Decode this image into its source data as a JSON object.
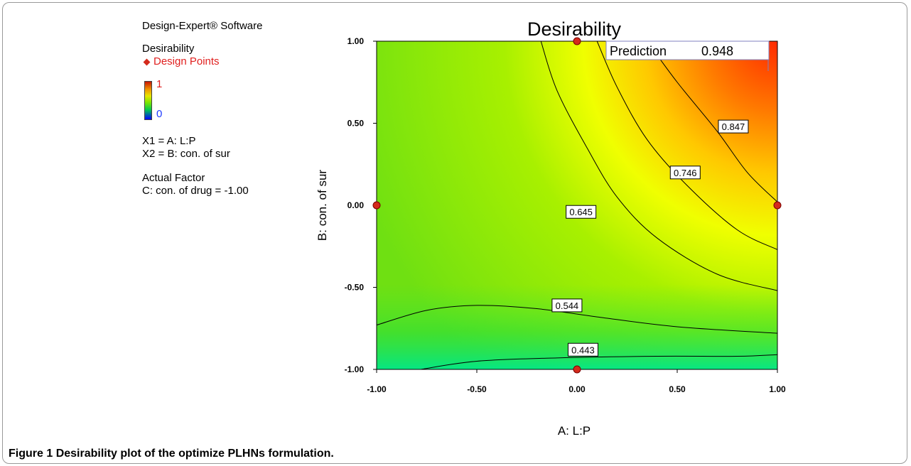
{
  "caption": {
    "label": "Figure 1",
    "text": "Desirability plot of the optimize PLHNs formulation."
  },
  "legend": {
    "software": "Design-Expert® Software",
    "response": "Desirability",
    "design_points": "Design Points",
    "scale_high": "1",
    "scale_low": "0",
    "x1": "X1 = A: L:P",
    "x2": "X2 = B: con. of sur",
    "actual_factor_title": "Actual Factor",
    "actual_factor": "C: con. of drug = -1.00"
  },
  "colors": {
    "design_point": "#d42a1c",
    "contour_line": "#000000"
  },
  "chart_data": {
    "type": "heatmap",
    "title": "Desirability",
    "xlabel": "A: L:P",
    "ylabel": "B: con. of sur",
    "xlim": [
      -1,
      1
    ],
    "ylim": [
      -1,
      1
    ],
    "xticks": [
      "-1.00",
      "-0.50",
      "0.00",
      "0.50",
      "1.00"
    ],
    "yticks": [
      "-1.00",
      "-0.50",
      "0.00",
      "0.50",
      "1.00"
    ],
    "grid": false,
    "prediction": {
      "label": "Prediction",
      "value": "0.948"
    },
    "design_points": [
      {
        "x": 0,
        "y": 1
      },
      {
        "x": -1,
        "y": 0
      },
      {
        "x": 1,
        "y": 0
      },
      {
        "x": 0,
        "y": -1
      }
    ],
    "contours": [
      {
        "level": "0.847",
        "points": [
          [
            0.35,
            1
          ],
          [
            0.5,
            0.75
          ],
          [
            0.7,
            0.45
          ],
          [
            0.85,
            0.2
          ],
          [
            1,
            0.02
          ]
        ],
        "label_at": [
          0.78,
          0.48
        ]
      },
      {
        "level": "0.746",
        "points": [
          [
            0.1,
            1
          ],
          [
            0.2,
            0.72
          ],
          [
            0.35,
            0.4
          ],
          [
            0.55,
            0.12
          ],
          [
            0.8,
            -0.15
          ],
          [
            1,
            -0.27
          ]
        ],
        "label_at": [
          0.54,
          0.2
        ]
      },
      {
        "level": "0.645",
        "points": [
          [
            -0.18,
            1
          ],
          [
            -0.1,
            0.7
          ],
          [
            0.05,
            0.35
          ],
          [
            0.2,
            0.05
          ],
          [
            0.4,
            -0.2
          ],
          [
            0.7,
            -0.42
          ],
          [
            1,
            -0.52
          ]
        ],
        "label_at": [
          0.02,
          -0.04
        ]
      },
      {
        "level": "0.544",
        "points": [
          [
            -1,
            -0.73
          ],
          [
            -0.75,
            -0.64
          ],
          [
            -0.5,
            -0.61
          ],
          [
            -0.2,
            -0.63
          ],
          [
            0.1,
            -0.68
          ],
          [
            0.5,
            -0.74
          ],
          [
            1,
            -0.78
          ]
        ],
        "label_at": [
          -0.05,
          -0.61
        ]
      },
      {
        "level": "0.443",
        "points": [
          [
            -0.78,
            -1
          ],
          [
            -0.5,
            -0.95
          ],
          [
            -0.1,
            -0.93
          ],
          [
            0.4,
            -0.92
          ],
          [
            0.8,
            -0.92
          ],
          [
            1,
            -0.91
          ]
        ],
        "label_at": [
          0.03,
          -0.88
        ]
      }
    ]
  }
}
